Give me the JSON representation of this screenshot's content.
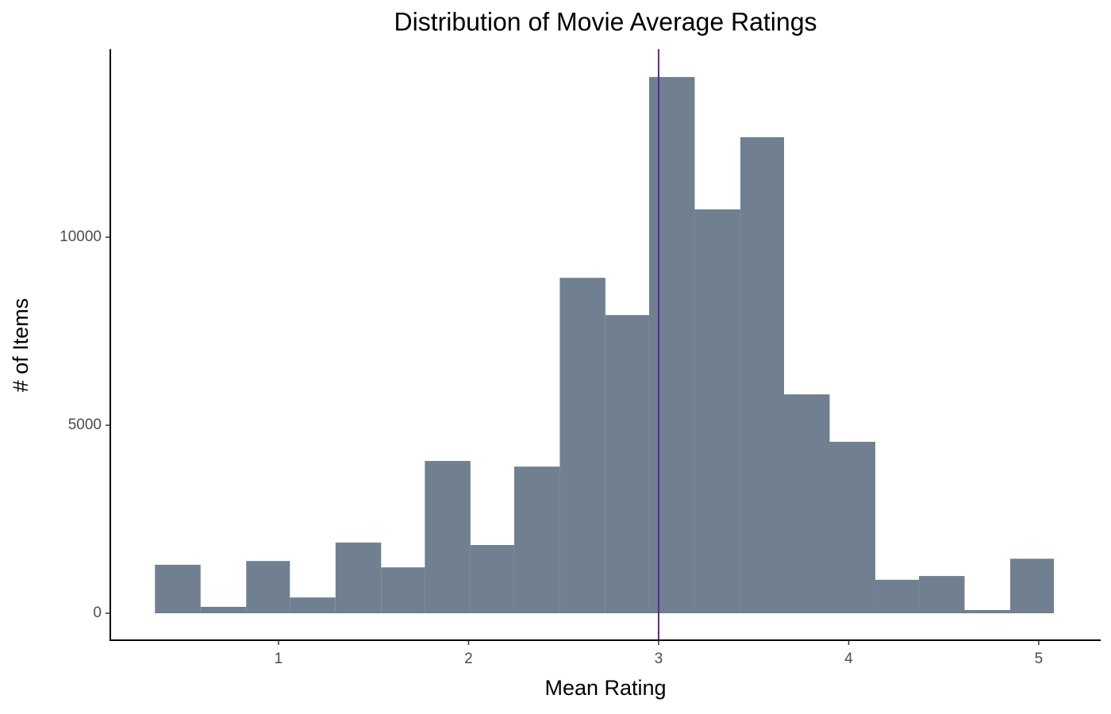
{
  "chart_data": {
    "type": "histogram",
    "title": "Distribution of Movie Average Ratings",
    "x_label": "Mean Rating",
    "y_label": "# of Items",
    "bins": [
      0.35,
      0.59,
      0.83,
      1.06,
      1.3,
      1.54,
      1.77,
      2.01,
      2.24,
      2.48,
      2.72,
      2.95,
      3.19,
      3.43,
      3.66,
      3.9,
      4.14,
      4.37,
      4.61,
      4.85,
      5.08
    ],
    "values": [
      1290,
      170,
      1390,
      420,
      1880,
      1220,
      4050,
      1815,
      3900,
      8920,
      7930,
      14260,
      10740,
      12660,
      5820,
      4560,
      890,
      990,
      85,
      1450
    ],
    "color": "#708090",
    "vline": 3,
    "vline_color": "#5b2a8e",
    "xlim": [
      0.115,
      5.326
    ],
    "xticks": [
      1,
      2,
      3,
      4,
      5
    ],
    "ylim": [
      -717,
      15000
    ],
    "yticks": [
      0,
      5000,
      10000
    ]
  }
}
